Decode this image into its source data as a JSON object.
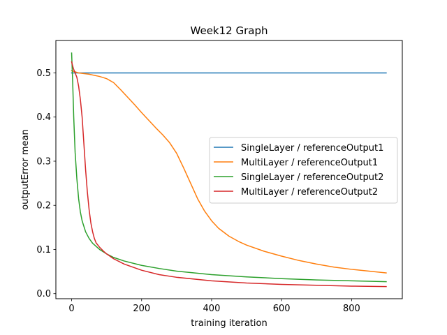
{
  "chart_data": {
    "type": "line",
    "title": "Week12 Graph",
    "xlabel": "training iteration",
    "ylabel": "outputError mean",
    "xlim": [
      -45,
      945
    ],
    "ylim": [
      -0.0115,
      0.5735
    ],
    "xticks": [
      0,
      200,
      400,
      600,
      800
    ],
    "yticks": [
      0.0,
      0.1,
      0.2,
      0.3,
      0.4,
      0.5
    ],
    "ytick_labels": [
      "0.0",
      "0.1",
      "0.2",
      "0.3",
      "0.4",
      "0.5"
    ],
    "grid": false,
    "legend_position": "center-right",
    "series": [
      {
        "name": "SingleLayer / referenceOutput1",
        "color": "#1f77b4",
        "x": [
          0,
          50,
          100,
          200,
          300,
          400,
          500,
          600,
          700,
          800,
          899
        ],
        "y": [
          0.5,
          0.5,
          0.5,
          0.5,
          0.5,
          0.5,
          0.5,
          0.5,
          0.5,
          0.5,
          0.5
        ]
      },
      {
        "name": "MultiLayer / referenceOutput1",
        "color": "#ff7f0e",
        "x": [
          0,
          20,
          50,
          80,
          100,
          120,
          140,
          160,
          180,
          200,
          220,
          240,
          260,
          280,
          300,
          320,
          340,
          360,
          380,
          400,
          420,
          450,
          480,
          500,
          550,
          600,
          650,
          700,
          750,
          800,
          850,
          899
        ],
        "y": [
          0.505,
          0.5,
          0.497,
          0.492,
          0.487,
          0.478,
          0.462,
          0.445,
          0.428,
          0.41,
          0.393,
          0.376,
          0.36,
          0.342,
          0.318,
          0.285,
          0.25,
          0.215,
          0.187,
          0.165,
          0.148,
          0.13,
          0.117,
          0.11,
          0.096,
          0.085,
          0.075,
          0.067,
          0.06,
          0.055,
          0.051,
          0.047
        ]
      },
      {
        "name": "SingleLayer / referenceOutput2",
        "color": "#2ca02c",
        "x": [
          0,
          3,
          6,
          10,
          15,
          20,
          25,
          30,
          40,
          50,
          60,
          80,
          100,
          120,
          150,
          200,
          250,
          300,
          400,
          500,
          600,
          700,
          800,
          899
        ],
        "y": [
          0.545,
          0.48,
          0.4,
          0.32,
          0.26,
          0.215,
          0.185,
          0.165,
          0.14,
          0.125,
          0.114,
          0.1,
          0.09,
          0.082,
          0.074,
          0.064,
          0.057,
          0.051,
          0.043,
          0.038,
          0.034,
          0.031,
          0.029,
          0.027
        ]
      },
      {
        "name": "MultiLayer / referenceOutput2",
        "color": "#d62728",
        "x": [
          0,
          5,
          10,
          15,
          20,
          25,
          30,
          35,
          40,
          45,
          50,
          55,
          60,
          65,
          70,
          80,
          90,
          100,
          120,
          150,
          200,
          250,
          300,
          400,
          500,
          600,
          700,
          800,
          899
        ],
        "y": [
          0.525,
          0.51,
          0.5,
          0.49,
          0.47,
          0.44,
          0.4,
          0.34,
          0.28,
          0.23,
          0.19,
          0.16,
          0.14,
          0.125,
          0.115,
          0.105,
          0.097,
          0.09,
          0.079,
          0.067,
          0.053,
          0.043,
          0.037,
          0.029,
          0.024,
          0.021,
          0.019,
          0.017,
          0.016
        ]
      }
    ]
  }
}
